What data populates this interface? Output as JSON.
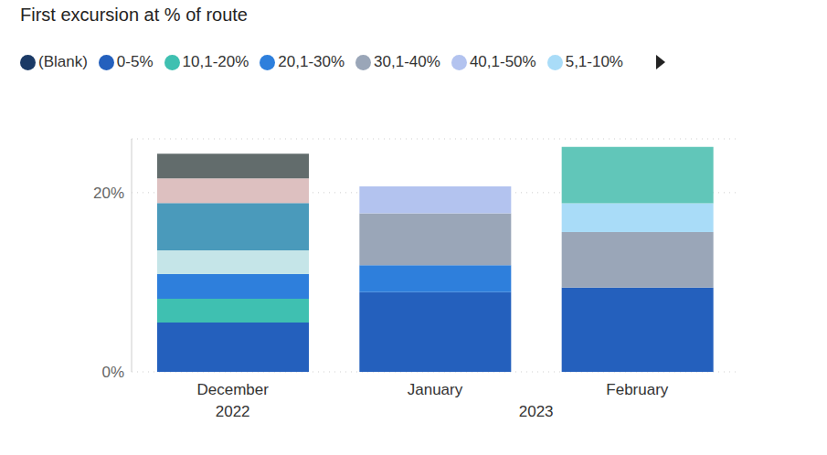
{
  "chart_data": {
    "type": "bar",
    "title": "First excursion at % of route",
    "stacked": true,
    "grid": true,
    "legend": "top",
    "categories": [
      "December",
      "January",
      "February"
    ],
    "category_groups": [
      {
        "label": "2022",
        "categories": [
          "December"
        ]
      },
      {
        "label": "2023",
        "categories": [
          "January",
          "February"
        ]
      }
    ],
    "ylim": [
      0,
      26
    ],
    "yticks": [
      {
        "value": 0,
        "label": "0%"
      },
      {
        "value": 20,
        "label": "20%"
      }
    ],
    "series": [
      {
        "name": "(Blank)",
        "color": "#1b3a66",
        "values": [
          null,
          null,
          null
        ]
      },
      {
        "name": "0-5%",
        "color": "#2460bd",
        "values": [
          5.5,
          8.9,
          9.4
        ]
      },
      {
        "name": "10,1-20%",
        "color": "#3fc0b1",
        "values": [
          2.65,
          null,
          null
        ]
      },
      {
        "name": "20,1-30%",
        "color": "#2e7fdc",
        "values": [
          2.75,
          3.0,
          null
        ]
      },
      {
        "name": "30,1-40%",
        "color": "#9aa6b8",
        "values": [
          null,
          5.8,
          6.2
        ]
      },
      {
        "name": "40,1-50%",
        "color": "#b3c3ef",
        "values": [
          null,
          3.0,
          null
        ]
      },
      {
        "name": "5,1-10%",
        "color": "#a9dcf8",
        "values": [
          null,
          null,
          3.2
        ]
      },
      {
        "name": null,
        "color": "#c5e5e8",
        "values": [
          2.65,
          null,
          null
        ]
      },
      {
        "name": null,
        "color": "#4a9abb",
        "values": [
          5.3,
          null,
          null
        ]
      },
      {
        "name": null,
        "color": "#ddc0c0",
        "values": [
          2.75,
          null,
          null
        ]
      },
      {
        "name": null,
        "color": "#626c6c",
        "values": [
          2.75,
          null,
          null
        ]
      },
      {
        "name": null,
        "color": "#61c6b9",
        "values": [
          null,
          null,
          6.3
        ]
      }
    ]
  }
}
